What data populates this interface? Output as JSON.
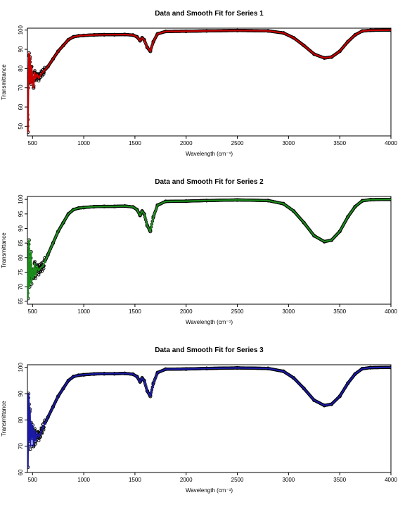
{
  "chart_data": [
    {
      "type": "scatter",
      "title": "Data and Smooth Fit for Series 1",
      "xlabel": "Wavelength (cm⁻¹)",
      "ylabel": "Transmittance",
      "xlim": [
        450,
        4000
      ],
      "ylim": [
        45,
        101
      ],
      "x_ticks": [
        "500",
        "1000",
        "1500",
        "2000",
        "2500",
        "3000",
        "3500",
        "4000"
      ],
      "y_ticks": [
        "50",
        "60",
        "70",
        "80",
        "90",
        "100"
      ],
      "y_tick_values": [
        50,
        60,
        70,
        80,
        90,
        100
      ],
      "points_color": "#000000",
      "fit_color": "#cc0000",
      "grid": false,
      "series": [
        {
          "values": [
            [
              450,
              56
            ],
            [
              455,
              47
            ],
            [
              460,
              74
            ],
            [
              465,
              88
            ],
            [
              470,
              73
            ],
            [
              475,
              86
            ],
            [
              480,
              78
            ],
            [
              485,
              72
            ],
            [
              490,
              81
            ],
            [
              500,
              76
            ],
            [
              510,
              70
            ],
            [
              520,
              78
            ],
            [
              530,
              75
            ],
            [
              545,
              77
            ],
            [
              560,
              75
            ],
            [
              580,
              77
            ],
            [
              600,
              78
            ],
            [
              650,
              81
            ],
            [
              700,
              85
            ],
            [
              750,
              89
            ],
            [
              800,
              92
            ],
            [
              850,
              95
            ],
            [
              900,
              96.5
            ],
            [
              950,
              97
            ],
            [
              1000,
              97.2
            ],
            [
              1100,
              97.5
            ],
            [
              1200,
              97.6
            ],
            [
              1300,
              97.6
            ],
            [
              1400,
              97.7
            ],
            [
              1480,
              97.4
            ],
            [
              1520,
              96.5
            ],
            [
              1550,
              94.5
            ],
            [
              1570,
              96
            ],
            [
              1590,
              95
            ],
            [
              1620,
              91
            ],
            [
              1650,
              89
            ],
            [
              1680,
              94
            ],
            [
              1720,
              98
            ],
            [
              1800,
              99.3
            ],
            [
              2000,
              99.4
            ],
            [
              2200,
              99.6
            ],
            [
              2500,
              99.8
            ],
            [
              2800,
              99.6
            ],
            [
              2950,
              98.5
            ],
            [
              3050,
              96
            ],
            [
              3150,
              92
            ],
            [
              3250,
              87.5
            ],
            [
              3350,
              85.5
            ],
            [
              3420,
              86
            ],
            [
              3500,
              89
            ],
            [
              3580,
              94
            ],
            [
              3650,
              97.5
            ],
            [
              3720,
              99.5
            ],
            [
              3800,
              99.9
            ],
            [
              4000,
              100
            ]
          ]
        }
      ]
    },
    {
      "type": "scatter",
      "title": "Data and Smooth Fit for Series 2",
      "xlabel": "Wavelength (cm⁻¹)",
      "ylabel": "Transmittance",
      "xlim": [
        450,
        4000
      ],
      "ylim": [
        64,
        101
      ],
      "x_ticks": [
        "500",
        "1000",
        "1500",
        "2000",
        "2500",
        "3000",
        "3500",
        "4000"
      ],
      "y_ticks": [
        "65",
        "70",
        "75",
        "80",
        "85",
        "90",
        "95",
        "100"
      ],
      "y_tick_values": [
        65,
        70,
        75,
        80,
        85,
        90,
        95,
        100
      ],
      "points_color": "#000000",
      "fit_color": "#1a8c1a",
      "grid": false,
      "series": [
        {
          "values": [
            [
              450,
              72
            ],
            [
              455,
              66
            ],
            [
              460,
              81
            ],
            [
              465,
              86
            ],
            [
              470,
              70
            ],
            [
              475,
              78
            ],
            [
              480,
              74
            ],
            [
              485,
              82
            ],
            [
              490,
              71
            ],
            [
              500,
              76
            ],
            [
              510,
              73
            ],
            [
              520,
              78
            ],
            [
              530,
              74
            ],
            [
              545,
              77
            ],
            [
              560,
              75.5
            ],
            [
              580,
              76.5
            ],
            [
              600,
              77
            ],
            [
              650,
              81
            ],
            [
              700,
              85
            ],
            [
              750,
              89
            ],
            [
              800,
              92
            ],
            [
              850,
              95
            ],
            [
              900,
              96.5
            ],
            [
              950,
              97
            ],
            [
              1000,
              97.2
            ],
            [
              1100,
              97.5
            ],
            [
              1200,
              97.6
            ],
            [
              1300,
              97.6
            ],
            [
              1400,
              97.7
            ],
            [
              1480,
              97.4
            ],
            [
              1520,
              96.5
            ],
            [
              1550,
              94.5
            ],
            [
              1570,
              96
            ],
            [
              1590,
              95
            ],
            [
              1620,
              91
            ],
            [
              1650,
              89
            ],
            [
              1680,
              94
            ],
            [
              1720,
              98
            ],
            [
              1800,
              99.3
            ],
            [
              2000,
              99.4
            ],
            [
              2200,
              99.6
            ],
            [
              2500,
              99.8
            ],
            [
              2800,
              99.6
            ],
            [
              2950,
              98.5
            ],
            [
              3050,
              96
            ],
            [
              3150,
              92
            ],
            [
              3250,
              87.5
            ],
            [
              3350,
              85.5
            ],
            [
              3420,
              86
            ],
            [
              3500,
              89
            ],
            [
              3580,
              94
            ],
            [
              3650,
              97.5
            ],
            [
              3720,
              99.5
            ],
            [
              3800,
              99.9
            ],
            [
              4000,
              100
            ]
          ]
        }
      ]
    },
    {
      "type": "scatter",
      "title": "Data and Smooth Fit for Series 3",
      "xlabel": "Wavelength (cm⁻¹)",
      "ylabel": "Transmittance",
      "xlim": [
        450,
        4000
      ],
      "ylim": [
        60,
        101
      ],
      "x_ticks": [
        "500",
        "1000",
        "1500",
        "2000",
        "2500",
        "3000",
        "3500",
        "4000"
      ],
      "y_ticks": [
        "60",
        "70",
        "80",
        "90",
        "100"
      ],
      "y_tick_values": [
        60,
        70,
        80,
        90,
        100
      ],
      "points_color": "#000000",
      "fit_color": "#1a1aa6",
      "grid": false,
      "series": [
        {
          "values": [
            [
              450,
              80
            ],
            [
              455,
              62
            ],
            [
              460,
              90
            ],
            [
              465,
              86
            ],
            [
              470,
              72
            ],
            [
              475,
              84
            ],
            [
              480,
              70
            ],
            [
              485,
              79
            ],
            [
              490,
              73
            ],
            [
              500,
              78
            ],
            [
              510,
              70
            ],
            [
              520,
              76
            ],
            [
              530,
              72
            ],
            [
              545,
              75
            ],
            [
              560,
              73.5
            ],
            [
              580,
              75
            ],
            [
              600,
              77
            ],
            [
              650,
              81
            ],
            [
              700,
              85
            ],
            [
              750,
              89
            ],
            [
              800,
              92
            ],
            [
              850,
              95
            ],
            [
              900,
              96.5
            ],
            [
              950,
              97
            ],
            [
              1000,
              97.2
            ],
            [
              1100,
              97.5
            ],
            [
              1200,
              97.6
            ],
            [
              1300,
              97.6
            ],
            [
              1400,
              97.7
            ],
            [
              1480,
              97.4
            ],
            [
              1520,
              96.5
            ],
            [
              1550,
              94.5
            ],
            [
              1570,
              96
            ],
            [
              1590,
              95
            ],
            [
              1620,
              91
            ],
            [
              1650,
              89
            ],
            [
              1680,
              94
            ],
            [
              1720,
              98
            ],
            [
              1800,
              99.3
            ],
            [
              2000,
              99.4
            ],
            [
              2200,
              99.6
            ],
            [
              2500,
              99.8
            ],
            [
              2800,
              99.6
            ],
            [
              2950,
              98.5
            ],
            [
              3050,
              96
            ],
            [
              3150,
              92
            ],
            [
              3250,
              87.5
            ],
            [
              3350,
              85.5
            ],
            [
              3420,
              86
            ],
            [
              3500,
              89
            ],
            [
              3580,
              94
            ],
            [
              3650,
              97.5
            ],
            [
              3720,
              99.5
            ],
            [
              3800,
              99.9
            ],
            [
              4000,
              100
            ]
          ]
        }
      ]
    }
  ]
}
